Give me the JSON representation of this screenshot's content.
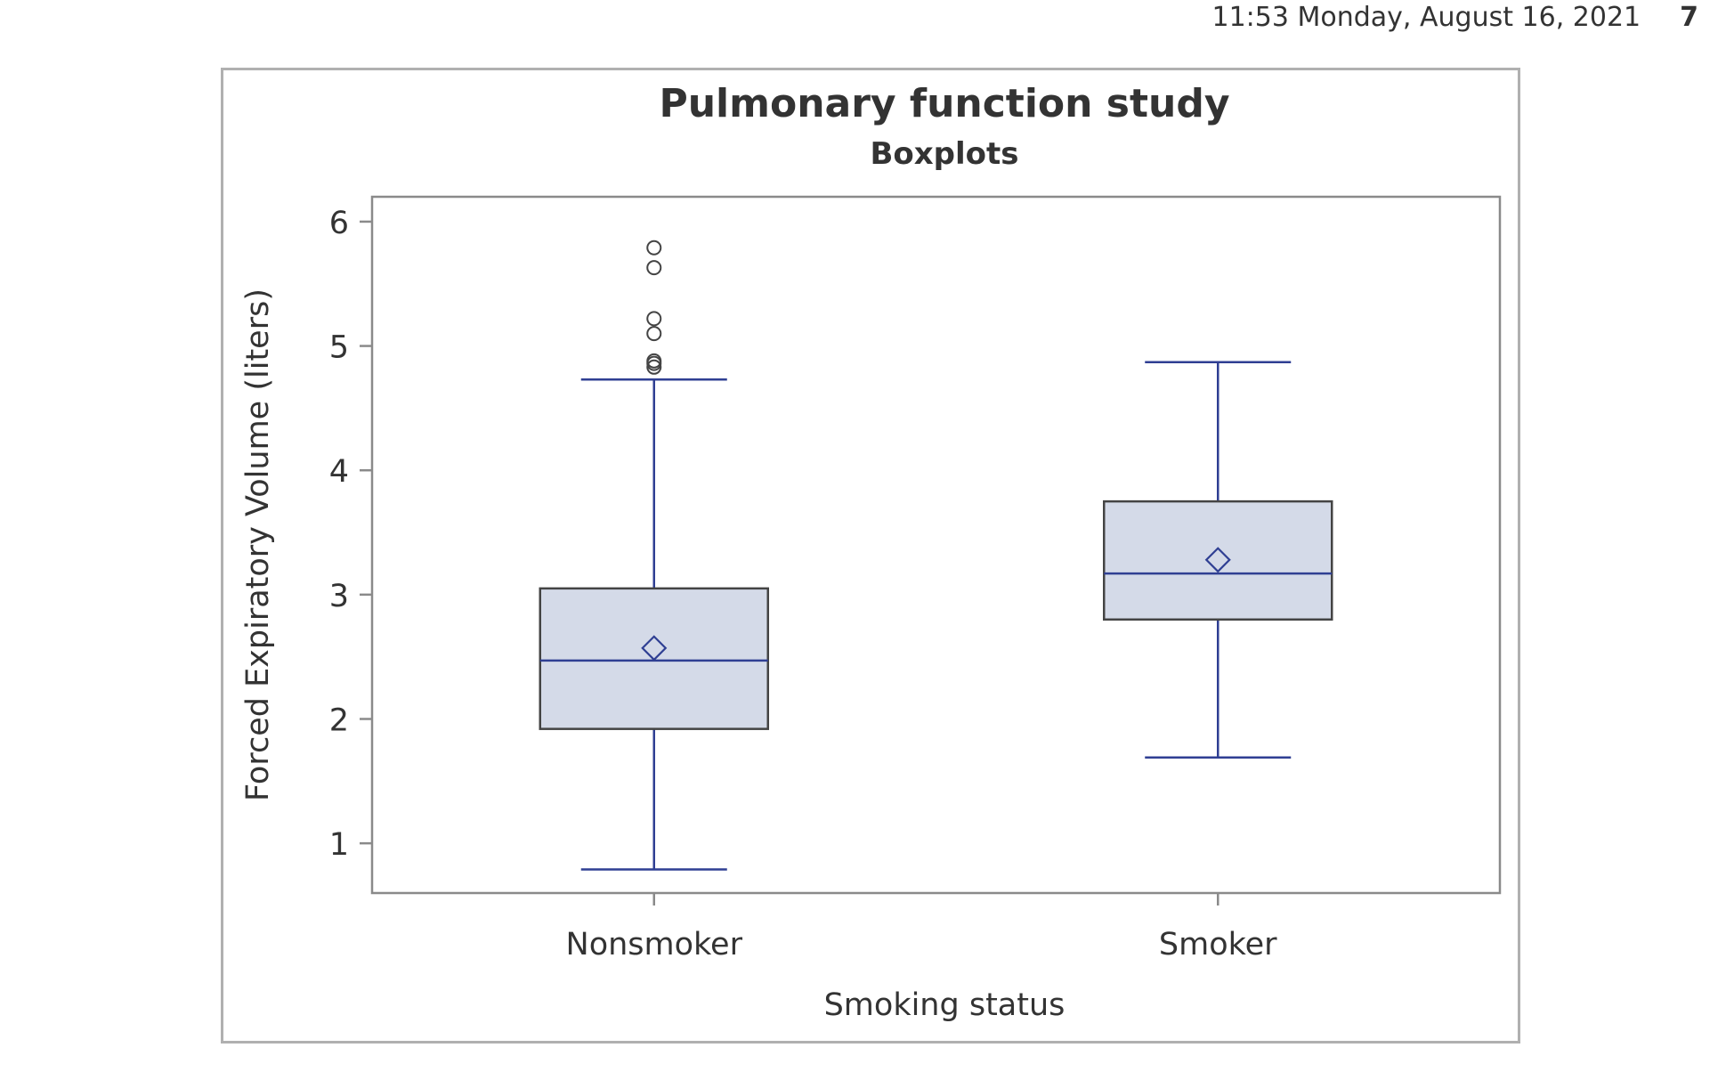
{
  "header": {
    "timestamp": "11:53 Monday, August 16, 2021",
    "page_number": "7"
  },
  "chart_data": {
    "type": "boxplot",
    "title": "Pulmonary function study",
    "subtitle": "Boxplots",
    "xlabel": "Smoking status",
    "ylabel": "Forced Expiratory Volume (liters)",
    "ylim": [
      0.6,
      6.2
    ],
    "yticks": [
      1,
      2,
      3,
      4,
      5,
      6
    ],
    "grid": false,
    "legend": "none",
    "categories": [
      "Nonsmoker",
      "Smoker"
    ],
    "boxes": [
      {
        "category": "Nonsmoker",
        "whisker_low": 0.79,
        "q1": 1.92,
        "median": 2.47,
        "q3": 3.05,
        "whisker_high": 4.73,
        "mean": 2.57,
        "outliers": [
          4.83,
          4.86,
          4.88,
          5.1,
          5.22,
          5.63,
          5.79
        ]
      },
      {
        "category": "Smoker",
        "whisker_low": 1.69,
        "q1": 2.8,
        "median": 3.17,
        "q3": 3.75,
        "whisker_high": 4.87,
        "mean": 3.28,
        "outliers": []
      }
    ],
    "colors": {
      "box_fill": "#d4dae8",
      "box_edge": "#444444",
      "whisker": "#2f3f93",
      "median": "#2f3f93",
      "mean_marker": "#2f3f93",
      "outlier": "#444444",
      "axis": "#8a8a8a",
      "text": "#333333"
    }
  }
}
